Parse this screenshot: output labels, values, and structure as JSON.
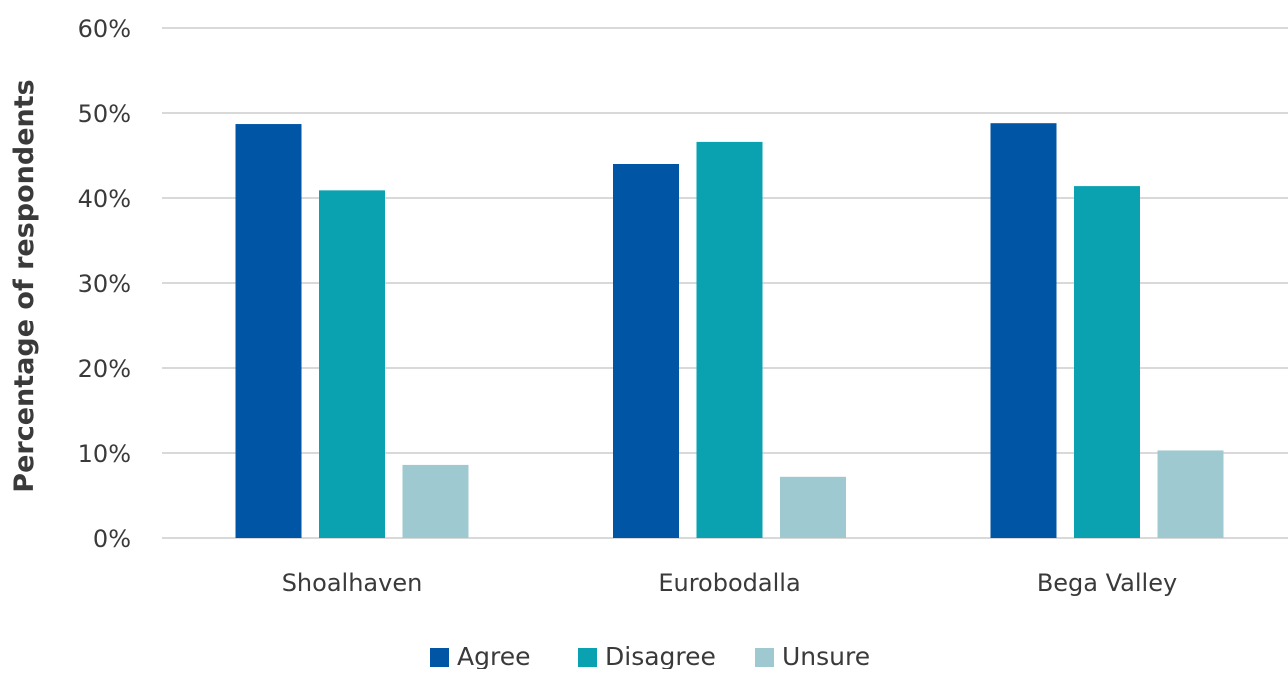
{
  "chart_data": {
    "type": "bar",
    "title": "",
    "xlabel": "",
    "ylabel": "Percentage of respondents",
    "ylim": [
      0,
      60
    ],
    "y_ticks": [
      "0%",
      "10%",
      "20%",
      "30%",
      "40%",
      "50%",
      "60%"
    ],
    "y_tick_values": [
      0,
      10,
      20,
      30,
      40,
      50,
      60
    ],
    "categories": [
      "Shoalhaven",
      "Eurobodalla",
      "Bega Valley"
    ],
    "series": [
      {
        "name": "Agree",
        "color": "#0055a5",
        "values": [
          48.7,
          44.0,
          48.8
        ]
      },
      {
        "name": "Disagree",
        "color": "#0aa2b0",
        "values": [
          40.9,
          46.6,
          41.4
        ]
      },
      {
        "name": "Unsure",
        "color": "#9ec9d1",
        "values": [
          8.6,
          7.2,
          10.3
        ]
      }
    ],
    "grid": true,
    "gridline_color": "#d9d9d9",
    "legend_position": "bottom"
  }
}
